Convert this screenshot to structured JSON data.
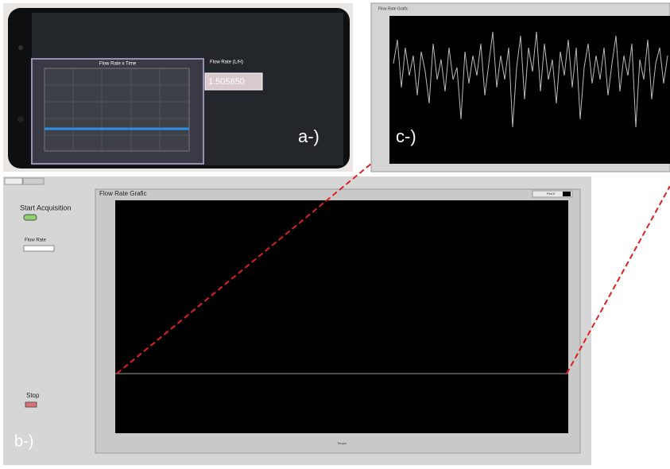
{
  "phone_panel": {
    "label": "a-)",
    "chart_title": "Flow Rate x Time",
    "readout_label": "Flow Rate (L/H)",
    "readout_value": "1.505850"
  },
  "zoom_panel": {
    "label": "c-)",
    "title": "Flow Rate Grafic"
  },
  "labview_panel": {
    "label": "b-)",
    "start_button": "Start Acquisition",
    "flow_rate_label": "Flow Rate",
    "stop_button": "Stop",
    "chart_title": "Flow Rate Grafic",
    "legend": "Plot 0",
    "x_axis_label": "Tempo"
  }
}
